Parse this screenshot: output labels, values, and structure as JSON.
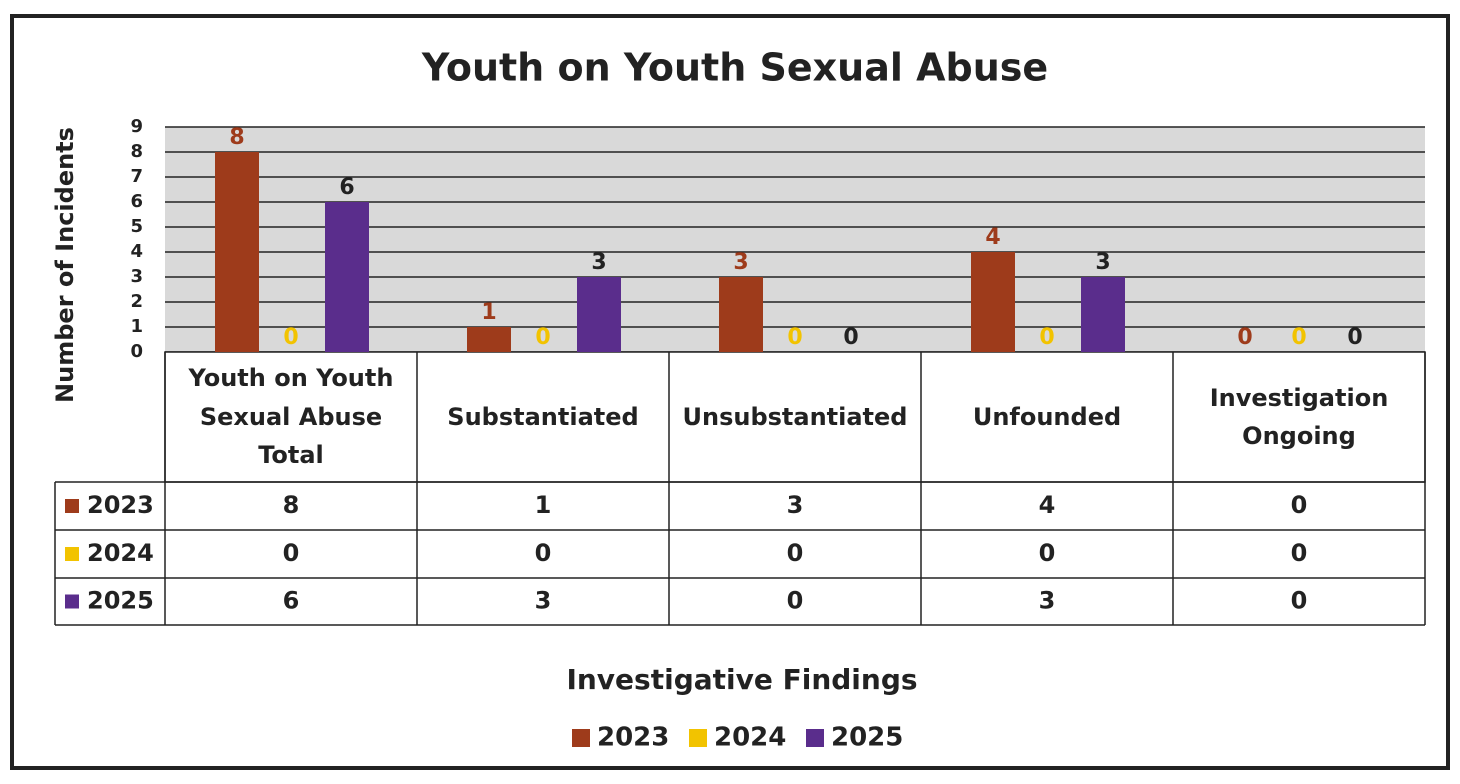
{
  "chart_data": {
    "type": "bar",
    "title": "Youth on Youth Sexual Abuse",
    "y_label": "Number of Incidents",
    "x_label": "Investigative Findings",
    "categories": [
      "Youth on Youth Sexual Abuse Total",
      "Substantiated",
      "Unsubstantiated",
      "Unfounded",
      "Investigation Ongoing"
    ],
    "series": [
      {
        "name": "2023",
        "color": "#9e3b1b",
        "values": [
          8,
          1,
          3,
          4,
          0
        ]
      },
      {
        "name": "2024",
        "color": "#f2c300",
        "values": [
          0,
          0,
          0,
          0,
          0
        ]
      },
      {
        "name": "2025",
        "color": "#5a2d8c",
        "values": [
          6,
          3,
          0,
          3,
          0
        ]
      }
    ],
    "ylim": [
      0,
      9
    ],
    "yticks": [
      0,
      1,
      2,
      3,
      4,
      5,
      6,
      7,
      8,
      9
    ],
    "grid": true
  }
}
